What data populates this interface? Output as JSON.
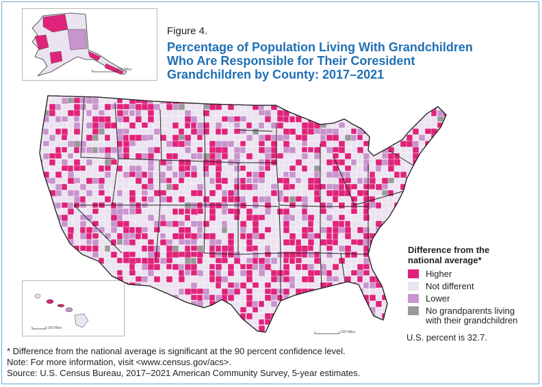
{
  "figure": {
    "label": "Figure 4.",
    "title_lines": [
      "Percentage of Population Living With Grandchildren",
      "Who Are Responsible for Their Coresident",
      "Grandchildren by County: 2017–2021"
    ]
  },
  "legend": {
    "title_lines": [
      "Difference from the",
      "national average*"
    ],
    "items": [
      {
        "label": "Higher",
        "color": "#e0237a"
      },
      {
        "label": "Not different",
        "color": "#ebe3f0"
      },
      {
        "label": "Lower",
        "color": "#c894cd"
      },
      {
        "label": "No grandparents living",
        "label2": "with their grandchildren",
        "color": "#999999"
      }
    ]
  },
  "us_percent_text": "U.S. percent is 32.7.",
  "scale_bars": {
    "alaska": "500 Miles",
    "hawaii": "100 Miles",
    "conus": "500 Miles"
  },
  "colors": {
    "higher": "#e0237a",
    "not_different": "#ebe3f0",
    "lower": "#c894cd",
    "no_grandparents": "#999999",
    "boundary": "#222222",
    "title": "#1f6fb5",
    "frame": "#6fa6cf"
  },
  "notes": [
    "* Difference from the national average is significant at the 90 percent confidence level.",
    "Note: For more information, visit <www.census.gov/acs>.",
    "Source: U.S. Census Bureau, 2017–2021 American Community Survey, 5-year estimates."
  ]
}
